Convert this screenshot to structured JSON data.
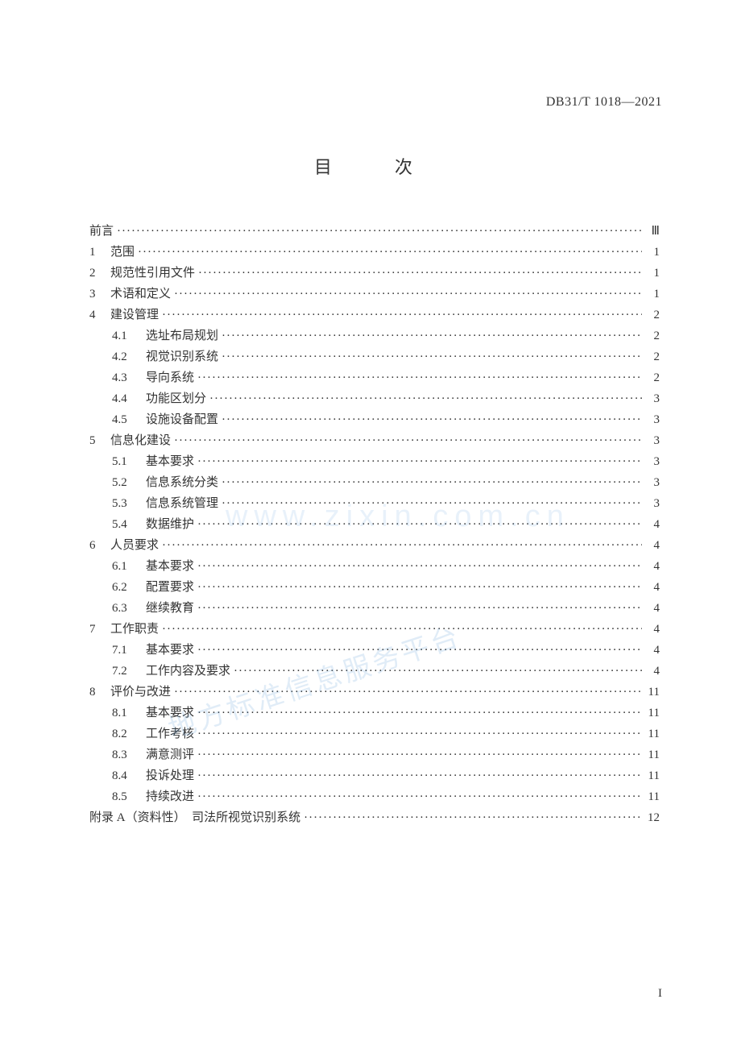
{
  "document": {
    "standard_code": "DB31/T 1018—2021",
    "title": "目　次",
    "page_number": "I",
    "watermark1": "www.zixin.com.cn",
    "watermark2": "地方标准信息服务平台"
  },
  "toc": [
    {
      "level": 0,
      "num": "",
      "label": "前言",
      "page": "Ⅲ"
    },
    {
      "level": 0,
      "num": "1",
      "label": "范围",
      "page": "1"
    },
    {
      "level": 0,
      "num": "2",
      "label": "规范性引用文件",
      "page": "1"
    },
    {
      "level": 0,
      "num": "3",
      "label": "术语和定义",
      "page": "1"
    },
    {
      "level": 0,
      "num": "4",
      "label": "建设管理",
      "page": "2"
    },
    {
      "level": 1,
      "num": "4.1",
      "label": "选址布局规划",
      "page": "2"
    },
    {
      "level": 1,
      "num": "4.2",
      "label": "视觉识别系统",
      "page": "2"
    },
    {
      "level": 1,
      "num": "4.3",
      "label": "导向系统",
      "page": "2"
    },
    {
      "level": 1,
      "num": "4.4",
      "label": "功能区划分",
      "page": "3"
    },
    {
      "level": 1,
      "num": "4.5",
      "label": "设施设备配置",
      "page": "3"
    },
    {
      "level": 0,
      "num": "5",
      "label": "信息化建设",
      "page": "3"
    },
    {
      "level": 1,
      "num": "5.1",
      "label": "基本要求",
      "page": "3"
    },
    {
      "level": 1,
      "num": "5.2",
      "label": "信息系统分类",
      "page": "3"
    },
    {
      "level": 1,
      "num": "5.3",
      "label": "信息系统管理",
      "page": "3"
    },
    {
      "level": 1,
      "num": "5.4",
      "label": "数据维护",
      "page": "4"
    },
    {
      "level": 0,
      "num": "6",
      "label": "人员要求",
      "page": "4"
    },
    {
      "level": 1,
      "num": "6.1",
      "label": "基本要求",
      "page": "4"
    },
    {
      "level": 1,
      "num": "6.2",
      "label": "配置要求",
      "page": "4"
    },
    {
      "level": 1,
      "num": "6.3",
      "label": "继续教育",
      "page": "4"
    },
    {
      "level": 0,
      "num": "7",
      "label": "工作职责",
      "page": "4"
    },
    {
      "level": 1,
      "num": "7.1",
      "label": "基本要求",
      "page": "4"
    },
    {
      "level": 1,
      "num": "7.2",
      "label": "工作内容及要求",
      "page": "4"
    },
    {
      "level": 0,
      "num": "8",
      "label": "评价与改进",
      "page": "11"
    },
    {
      "level": 1,
      "num": "8.1",
      "label": "基本要求",
      "page": "11"
    },
    {
      "level": 1,
      "num": "8.2",
      "label": "工作考核",
      "page": "11"
    },
    {
      "level": 1,
      "num": "8.3",
      "label": "满意测评",
      "page": "11"
    },
    {
      "level": 1,
      "num": "8.4",
      "label": "投诉处理",
      "page": "11"
    },
    {
      "level": 1,
      "num": "8.5",
      "label": "持续改进",
      "page": "11"
    },
    {
      "level": 0,
      "num": "",
      "label": "附录 A（资料性）　司法所视觉识别系统",
      "page": "12"
    }
  ],
  "styling": {
    "page_bg": "#ffffff",
    "text_color": "#333333",
    "font_size_body": 15,
    "font_size_title": 22,
    "font_size_header": 16,
    "dot_char": "·",
    "watermark_color": "#4a90d9",
    "watermark_opacity": 0.12
  }
}
